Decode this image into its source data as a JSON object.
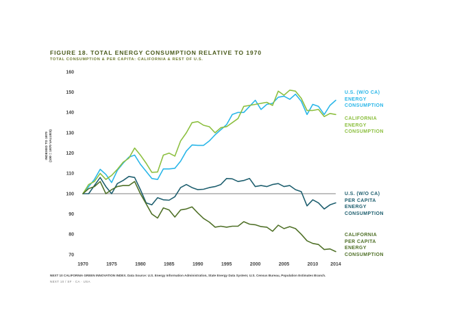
{
  "header": {
    "title": "FIGURE 18. TOTAL ENERGY CONSUMPTION RELATIVE TO 1970",
    "subtitle": "TOTAL CONSUMPTION & PER CAPITA: CALIFORNIA & REST OF U.S."
  },
  "footer": {
    "source": "NEXT 10 CALIFORNIA GREEN INNOVATION INDEX. Data Source: U.S. Energy Information Administration, State Energy Data System; U.S. Census Bureau, Population Estimates Branch.",
    "credit": "NEXT 10 / SF · CA · USA"
  },
  "chart_data": {
    "type": "line",
    "ylabel_line1": "INDEXED TO 1970",
    "ylabel_line2": "(100 = 1970 VALUES)",
    "ylim": [
      70,
      160
    ],
    "yticks": [
      70,
      80,
      90,
      100,
      110,
      120,
      130,
      140,
      150,
      160
    ],
    "xlim": [
      1970,
      2014
    ],
    "xticks": [
      1970,
      1975,
      1980,
      1985,
      1990,
      1995,
      2000,
      2005,
      2010,
      2014
    ],
    "reference_line": 100,
    "grid": false,
    "legend": "right, inline at line ends",
    "x": [
      1970,
      1971,
      1972,
      1973,
      1974,
      1975,
      1976,
      1977,
      1978,
      1979,
      1980,
      1981,
      1982,
      1983,
      1984,
      1985,
      1986,
      1987,
      1988,
      1989,
      1990,
      1991,
      1992,
      1993,
      1994,
      1995,
      1996,
      1997,
      1998,
      1999,
      2000,
      2001,
      2002,
      2003,
      2004,
      2005,
      2006,
      2007,
      2008,
      2009,
      2010,
      2011,
      2012,
      2013,
      2014
    ],
    "series": [
      {
        "name_lines": [
          "U.S. (W/O CA)",
          "ENERGY",
          "CONSUMPTION"
        ],
        "color": "#29b6e8",
        "values": [
          100,
          103.5,
          107,
          112,
          109.5,
          105.5,
          111.5,
          115,
          118,
          119,
          114.5,
          111,
          107.5,
          107,
          112.2,
          112.2,
          112.5,
          116,
          121,
          124,
          123.8,
          123.8,
          126,
          129,
          131.5,
          134,
          139,
          140,
          140,
          143,
          146,
          141.5,
          144,
          144.5,
          147.5,
          148,
          146.5,
          149,
          145.5,
          139,
          144,
          143,
          139,
          143.5,
          146
        ]
      },
      {
        "name_lines": [
          "CALIFORNIA",
          "ENERGY",
          "CONSUMPTION"
        ],
        "color": "#8cbf3f",
        "values": [
          100,
          104.5,
          106,
          110,
          107,
          109,
          112,
          115.5,
          117.5,
          122.5,
          119,
          115,
          110.5,
          110.7,
          119,
          120,
          118.5,
          126,
          130,
          135,
          135.5,
          133.7,
          133,
          130,
          132.5,
          133,
          135,
          137,
          143,
          143.5,
          144,
          144.5,
          145,
          143.5,
          150.5,
          148.5,
          151,
          150.5,
          147,
          141,
          141,
          141.5,
          138,
          139.5,
          139
        ]
      },
      {
        "name_lines": [
          "U.S. (W/O CA)",
          "PER CAPITA",
          "ENERGY",
          "CONSUMPTION"
        ],
        "color": "#1d5e6e",
        "values": [
          100,
          100,
          104,
          108,
          103.5,
          100,
          105,
          106.5,
          108.5,
          108,
          102,
          95.5,
          94.5,
          98,
          97,
          96.8,
          98.5,
          103,
          104.5,
          103,
          102,
          102.2,
          103,
          103.5,
          104.5,
          107.5,
          107.3,
          106,
          106.5,
          107.5,
          103.5,
          104,
          103.5,
          104.5,
          105,
          103.5,
          104,
          102,
          101,
          94,
          97,
          95.5,
          92.5,
          94.5,
          95.5
        ]
      },
      {
        "name_lines": [
          "CALIFORNIA",
          "PER CAPITA",
          "ENERGY",
          "CONSUMPTION"
        ],
        "color": "#4f7027",
        "values": [
          100,
          102.5,
          103.5,
          106,
          100,
          102,
          103.5,
          104,
          104,
          106,
          100,
          95,
          90,
          88,
          93,
          92,
          88.5,
          92,
          92.5,
          93.5,
          90.5,
          87.8,
          86,
          83.5,
          84,
          83.5,
          84,
          84,
          86.2,
          85,
          84.7,
          83.8,
          83.5,
          81.5,
          84.5,
          82.8,
          83.8,
          82.8,
          80,
          76.8,
          75.5,
          75,
          72.5,
          72.8,
          71.5
        ]
      }
    ]
  }
}
